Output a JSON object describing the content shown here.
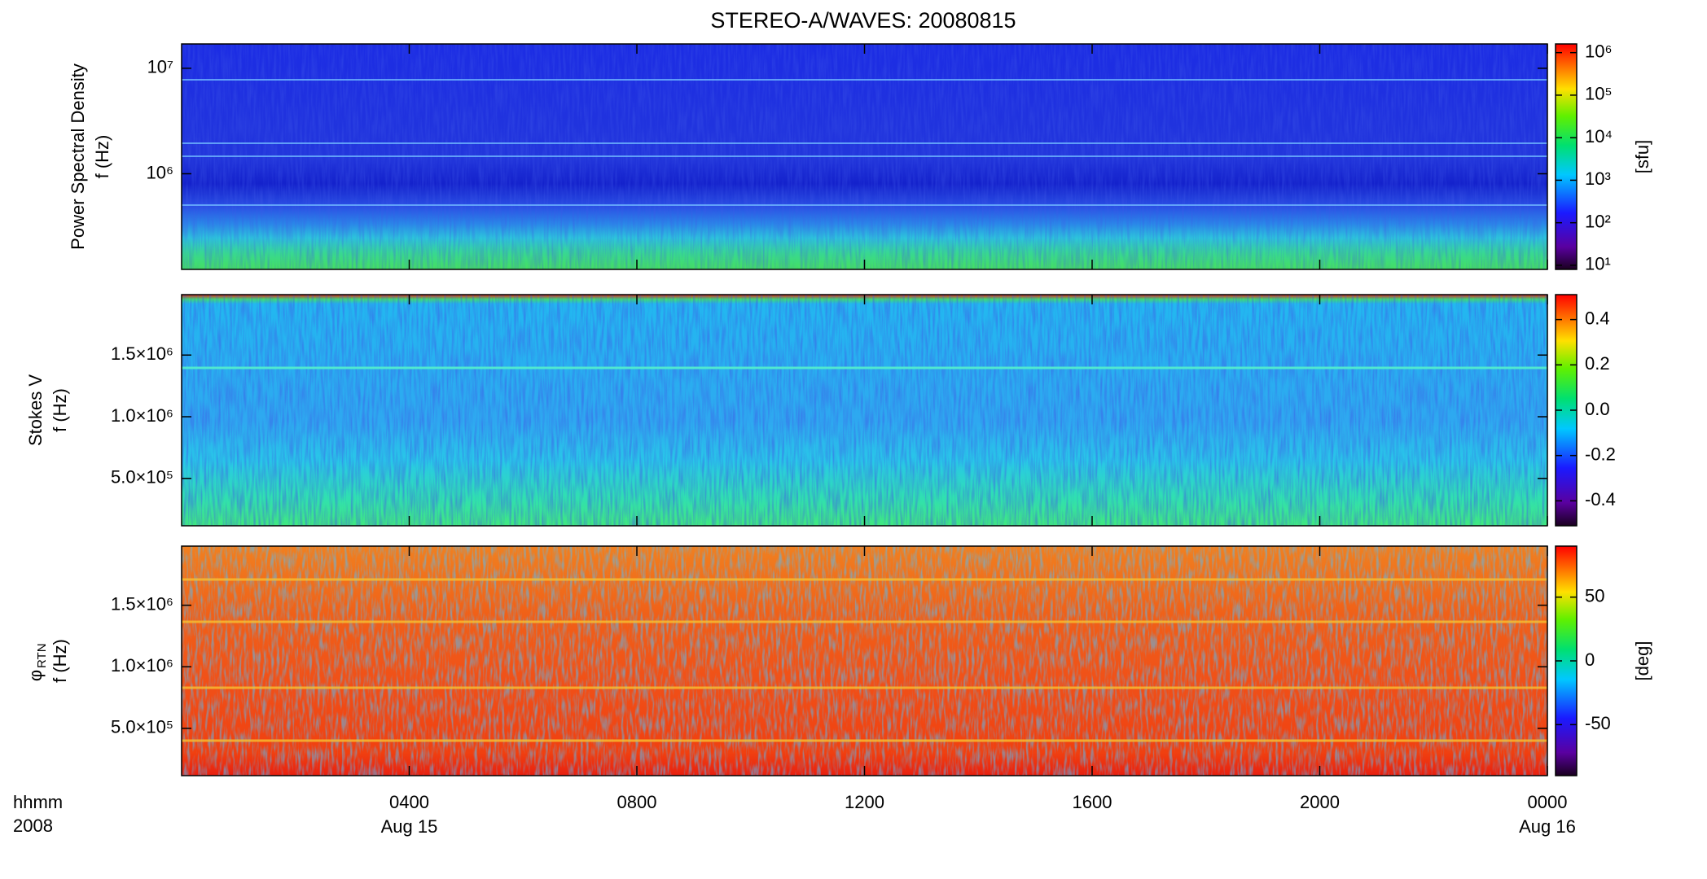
{
  "title": "STEREO-A/WAVES: 20080815",
  "chart_data": [
    {
      "type": "heatmap",
      "ylabel": [
        "Power Spectral Density",
        "f (Hz)"
      ],
      "ylog": true,
      "ylim": [
        124000,
        17000000
      ],
      "yticks": [
        {
          "value": 1000000,
          "label": "10⁶"
        },
        {
          "value": 10000000,
          "label": "10⁷"
        }
      ],
      "xlim": [
        0,
        24
      ],
      "xticks": [
        4,
        8,
        12,
        16,
        20,
        24
      ],
      "colorbar": {
        "log": true,
        "lim": [
          8,
          1600000
        ],
        "label": "[sfu]",
        "ticks": [
          {
            "value": 10,
            "label": "10¹"
          },
          {
            "value": 100,
            "label": "10²"
          },
          {
            "value": 1000,
            "label": "10³"
          },
          {
            "value": 10000,
            "label": "10⁴"
          },
          {
            "value": 100000,
            "label": "10⁵"
          },
          {
            "value": 1000000,
            "label": "10⁶"
          }
        ]
      }
    },
    {
      "type": "heatmap",
      "ylabel": [
        "Stokes V",
        "f (Hz)"
      ],
      "ylog": false,
      "ylim": [
        116000,
        1990000
      ],
      "yticks": [
        {
          "value": 500000,
          "label": "5.0×10⁵"
        },
        {
          "value": 1000000,
          "label": "1.0×10⁶"
        },
        {
          "value": 1500000,
          "label": "1.5×10⁶"
        }
      ],
      "xlim": [
        0,
        24
      ],
      "xticks": [
        4,
        8,
        12,
        16,
        20,
        24
      ],
      "colorbar": {
        "log": false,
        "lim": [
          -0.51,
          0.51
        ],
        "ticks": [
          -0.4,
          -0.2,
          {
            "value": 0,
            "label": "0.0"
          },
          0.2,
          0.4
        ]
      }
    },
    {
      "type": "heatmap",
      "ylabel": [
        "φ",
        "f (Hz)"
      ],
      "ylabel_subscript": "RTN",
      "ylog": false,
      "ylim": [
        116000,
        1980000
      ],
      "yticks": [
        {
          "value": 500000,
          "label": "5.0×10⁵"
        },
        {
          "value": 1000000,
          "label": "1.0×10⁶"
        },
        {
          "value": 1500000,
          "label": "1.5×10⁶"
        }
      ],
      "xlim": [
        0,
        24
      ],
      "xticks": [
        {
          "value": 4,
          "label": "0400"
        },
        {
          "value": 8,
          "label": "0800"
        },
        {
          "value": 12,
          "label": "1200"
        },
        {
          "value": 16,
          "label": "1600"
        },
        {
          "value": 20,
          "label": "2000"
        },
        {
          "value": 24,
          "label": "0000"
        }
      ],
      "date_labels": [
        {
          "value": 4,
          "label": "Aug 15"
        },
        {
          "value": 24,
          "label": "Aug 16"
        }
      ],
      "x_label": [
        "hhmm",
        "2008"
      ],
      "colorbar": {
        "log": false,
        "lim": [
          -90,
          90
        ],
        "label": "[deg]",
        "ticks": [
          -50,
          0,
          50
        ]
      }
    }
  ]
}
